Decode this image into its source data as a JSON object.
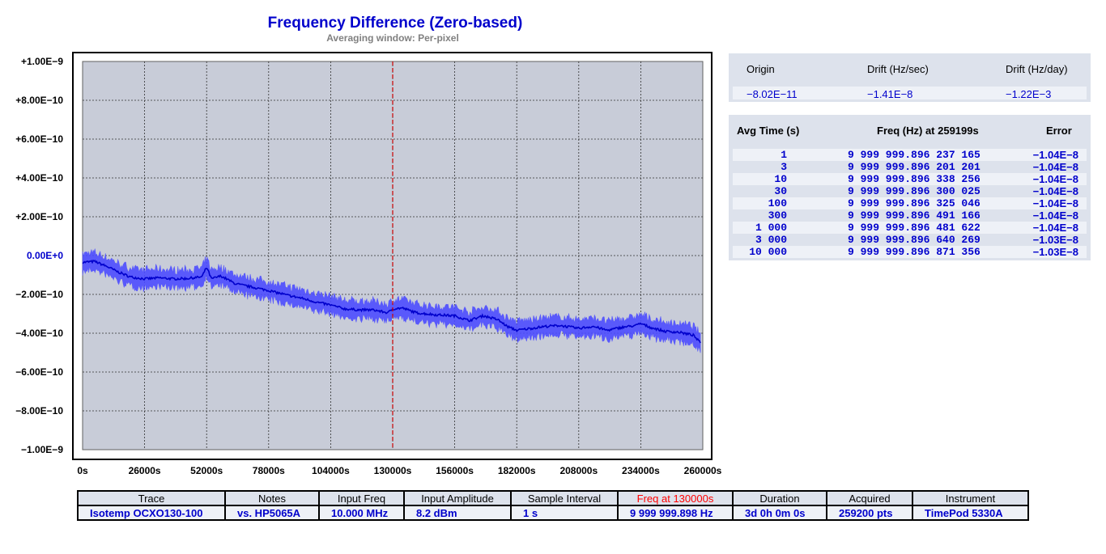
{
  "chart_data": {
    "type": "line",
    "title": "Frequency Difference (Zero-based)",
    "subtitle": "Averaging window: Per-pixel",
    "ylim": [
      -1e-09,
      1e-09
    ],
    "xlim": [
      0,
      260000
    ],
    "y_tick_labels": [
      "+1.00E−9",
      "+8.00E−10",
      "+6.00E−10",
      "+4.00E−10",
      "+2.00E−10",
      "0.00E+0",
      "−2.00E−10",
      "−4.00E−10",
      "−6.00E−10",
      "−8.00E−10",
      "−1.00E−9"
    ],
    "y_tick_values": [
      1e-09,
      8e-10,
      6e-10,
      4e-10,
      2e-10,
      0,
      -2e-10,
      -4e-10,
      -6e-10,
      -8e-10,
      -1e-09
    ],
    "x_tick_labels": [
      "0s",
      "26000s",
      "52000s",
      "78000s",
      "104000s",
      "130000s",
      "156000s",
      "182000s",
      "208000s",
      "234000s",
      "260000s"
    ],
    "x_tick_values": [
      0,
      26000,
      52000,
      78000,
      104000,
      130000,
      156000,
      182000,
      208000,
      234000,
      260000
    ],
    "marker_x": 130000,
    "grid": true,
    "series": [
      {
        "color": "#0000cc",
        "band_color": "#4d4dff",
        "x": [
          0,
          5000,
          10000,
          15000,
          20000,
          26000,
          32000,
          38000,
          44000,
          50000,
          52000,
          54000,
          58000,
          64000,
          70000,
          78000,
          86000,
          92000,
          98000,
          104000,
          110000,
          116000,
          122000,
          128000,
          130000,
          134000,
          140000,
          148000,
          156000,
          162000,
          168000,
          174000,
          178000,
          182000,
          188000,
          194000,
          200000,
          208000,
          214000,
          220000,
          226000,
          232000,
          234000,
          238000,
          244000,
          250000,
          256000,
          259000
        ],
        "y": [
          -3.5e-11,
          -3e-11,
          -5.5e-11,
          -8.5e-11,
          -1.1e-10,
          -1.2e-10,
          -1.15e-10,
          -1.2e-10,
          -1.18e-10,
          -1.1e-10,
          -6e-11,
          -1.2e-10,
          -1.05e-10,
          -1.45e-10,
          -1.6e-10,
          -1.8e-10,
          -2.05e-10,
          -2.2e-10,
          -2.4e-10,
          -2.55e-10,
          -2.75e-10,
          -2.8e-10,
          -2.8e-10,
          -2.95e-10,
          -2.75e-10,
          -2.7e-10,
          -2.95e-10,
          -3.05e-10,
          -3.1e-10,
          -3.35e-10,
          -3.1e-10,
          -3.3e-10,
          -3.65e-10,
          -3.85e-10,
          -3.75e-10,
          -3.65e-10,
          -3.6e-10,
          -3.75e-10,
          -3.65e-10,
          -3.85e-10,
          -3.7e-10,
          -3.6e-10,
          -3.5e-10,
          -3.7e-10,
          -3.9e-10,
          -3.95e-10,
          -4.1e-10,
          -4.5e-10
        ],
        "band_halfwidth": 4.5e-11
      }
    ]
  },
  "drift": {
    "headers": [
      "Origin",
      "Drift (Hz/sec)",
      "Drift (Hz/day)"
    ],
    "values": [
      "−8.02E−11",
      "−1.41E−8",
      "−1.22E−3"
    ]
  },
  "adev": {
    "headers": [
      "Avg Time (s)",
      "Freq (Hz) at 259199s",
      "Error"
    ],
    "rows": [
      {
        "t": "1",
        "f": "9 999 999.896 237 165",
        "e": "−1.04E−8"
      },
      {
        "t": "3",
        "f": "9 999 999.896 201 201",
        "e": "−1.04E−8"
      },
      {
        "t": "10",
        "f": "9 999 999.896 338 256",
        "e": "−1.04E−8"
      },
      {
        "t": "30",
        "f": "9 999 999.896 300 025",
        "e": "−1.04E−8"
      },
      {
        "t": "100",
        "f": "9 999 999.896 325 046",
        "e": "−1.04E−8"
      },
      {
        "t": "300",
        "f": "9 999 999.896 491 166",
        "e": "−1.04E−8"
      },
      {
        "t": "1 000",
        "f": "9 999 999.896 481 622",
        "e": "−1.04E−8"
      },
      {
        "t": "3 000",
        "f": "9 999 999.896 640 269",
        "e": "−1.03E−8"
      },
      {
        "t": "10 000",
        "f": "9 999 999.896 871 356",
        "e": "−1.03E−8"
      }
    ]
  },
  "info": {
    "headers": [
      "Trace",
      "Notes",
      "Input Freq",
      "Input Amplitude",
      "Sample Interval",
      "Freq at 130000s",
      "Duration",
      "Acquired",
      "Instrument"
    ],
    "values": [
      "Isotemp OCXO130-100",
      "vs. HP5065A",
      "10.000 MHz",
      "8.2 dBm",
      "1 s",
      "9 999 999.898 Hz",
      "3d 0h 0m 0s",
      "259200 pts",
      "TimePod 5330A"
    ]
  },
  "colors": {
    "plot_bg": "#c8ccd8",
    "grid": "#303030",
    "marker": "#cc0000",
    "zero_label": "#0000cc",
    "highlight_header": "#ff0000"
  }
}
